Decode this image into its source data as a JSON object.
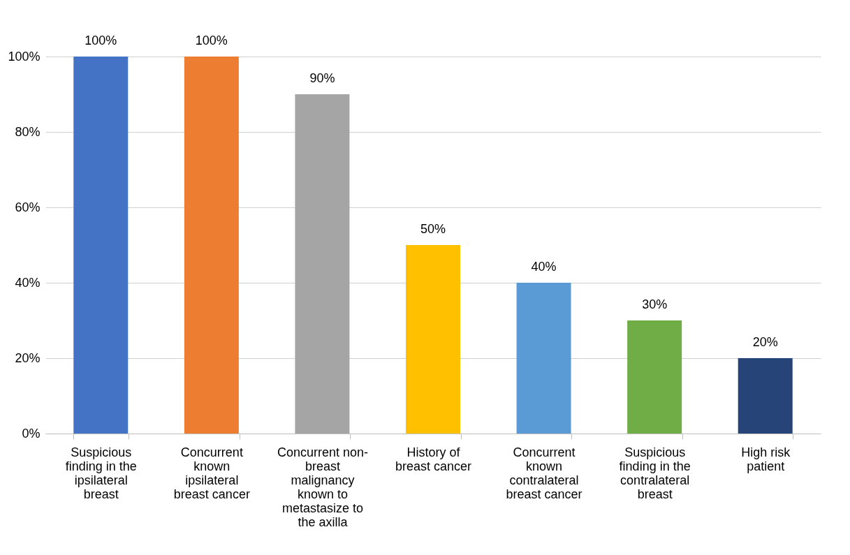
{
  "chart_data": {
    "type": "bar",
    "categories": [
      "Suspicious finding in the ipsilateral breast",
      "Concurrent known ipsilateral breast cancer",
      "Concurrent non-breast malignancy known to metastasize to the axilla",
      "History of breast cancer",
      "Concurrent known contralateral breast cancer",
      "Suspicious finding in the contralateral breast",
      "High risk patient"
    ],
    "values": [
      100,
      100,
      90,
      50,
      40,
      30,
      20
    ],
    "colors": [
      "#4472c4",
      "#ed7d31",
      "#a5a5a5",
      "#ffc000",
      "#5b9bd5",
      "#70ad47",
      "#264478"
    ],
    "value_labels": [
      "100%",
      "100%",
      "90%",
      "50%",
      "40%",
      "30%",
      "20%"
    ],
    "ylim": [
      0,
      100
    ],
    "yticks": [
      {
        "value": 0,
        "label": "0%"
      },
      {
        "value": 20,
        "label": "20%"
      },
      {
        "value": 40,
        "label": "40%"
      },
      {
        "value": 60,
        "label": "60%"
      },
      {
        "value": 80,
        "label": "80%"
      },
      {
        "value": 100,
        "label": "100%"
      }
    ],
    "grid": "y"
  }
}
